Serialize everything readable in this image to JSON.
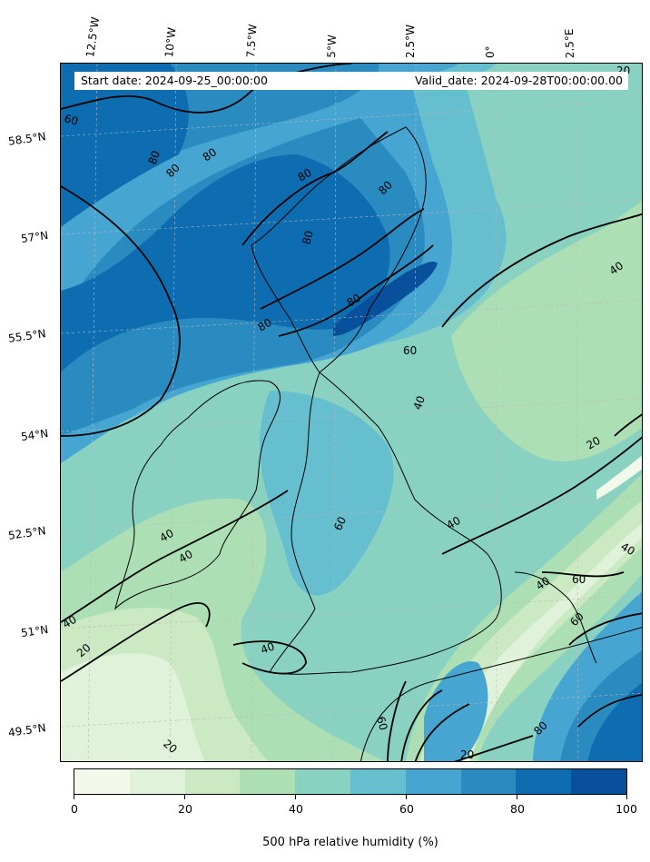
{
  "info": {
    "start_date": "Start date: 2024-09-25_00:00:00",
    "valid_date": "Valid_date: 2024-09-28T00:00:00.00"
  },
  "axes": {
    "longitude_labels": [
      "12.5°W",
      "10°W",
      "7.5°W",
      "5°W",
      "2.5°W",
      "0°",
      "2.5°E"
    ],
    "latitude_labels": [
      "58.5°N",
      "57°N",
      "55.5°N",
      "54°N",
      "52.5°N",
      "51°N",
      "49.5°N"
    ]
  },
  "contour_labels": [
    "20",
    "60",
    "80",
    "80",
    "80",
    "80",
    "80",
    "80",
    "80",
    "80",
    "60",
    "40",
    "40",
    "20",
    "40",
    "40",
    "60",
    "60",
    "40",
    "40",
    "40",
    "20",
    "40",
    "60",
    "60",
    "20",
    "20",
    "40",
    "80"
  ],
  "colorbar": {
    "title": "500 hPa relative humidity (%)",
    "ticks": [
      "0",
      "20",
      "40",
      "60",
      "80",
      "100"
    ],
    "colors": [
      "#f2f9ea",
      "#e0f2d9",
      "#cbeac4",
      "#addfb4",
      "#89d1c1",
      "#66bfcf",
      "#46a6d1",
      "#2a8bc0",
      "#0d6db0",
      "#08509b"
    ]
  },
  "colors": {
    "land_border": "#000000",
    "contour_line": "#000000"
  }
}
